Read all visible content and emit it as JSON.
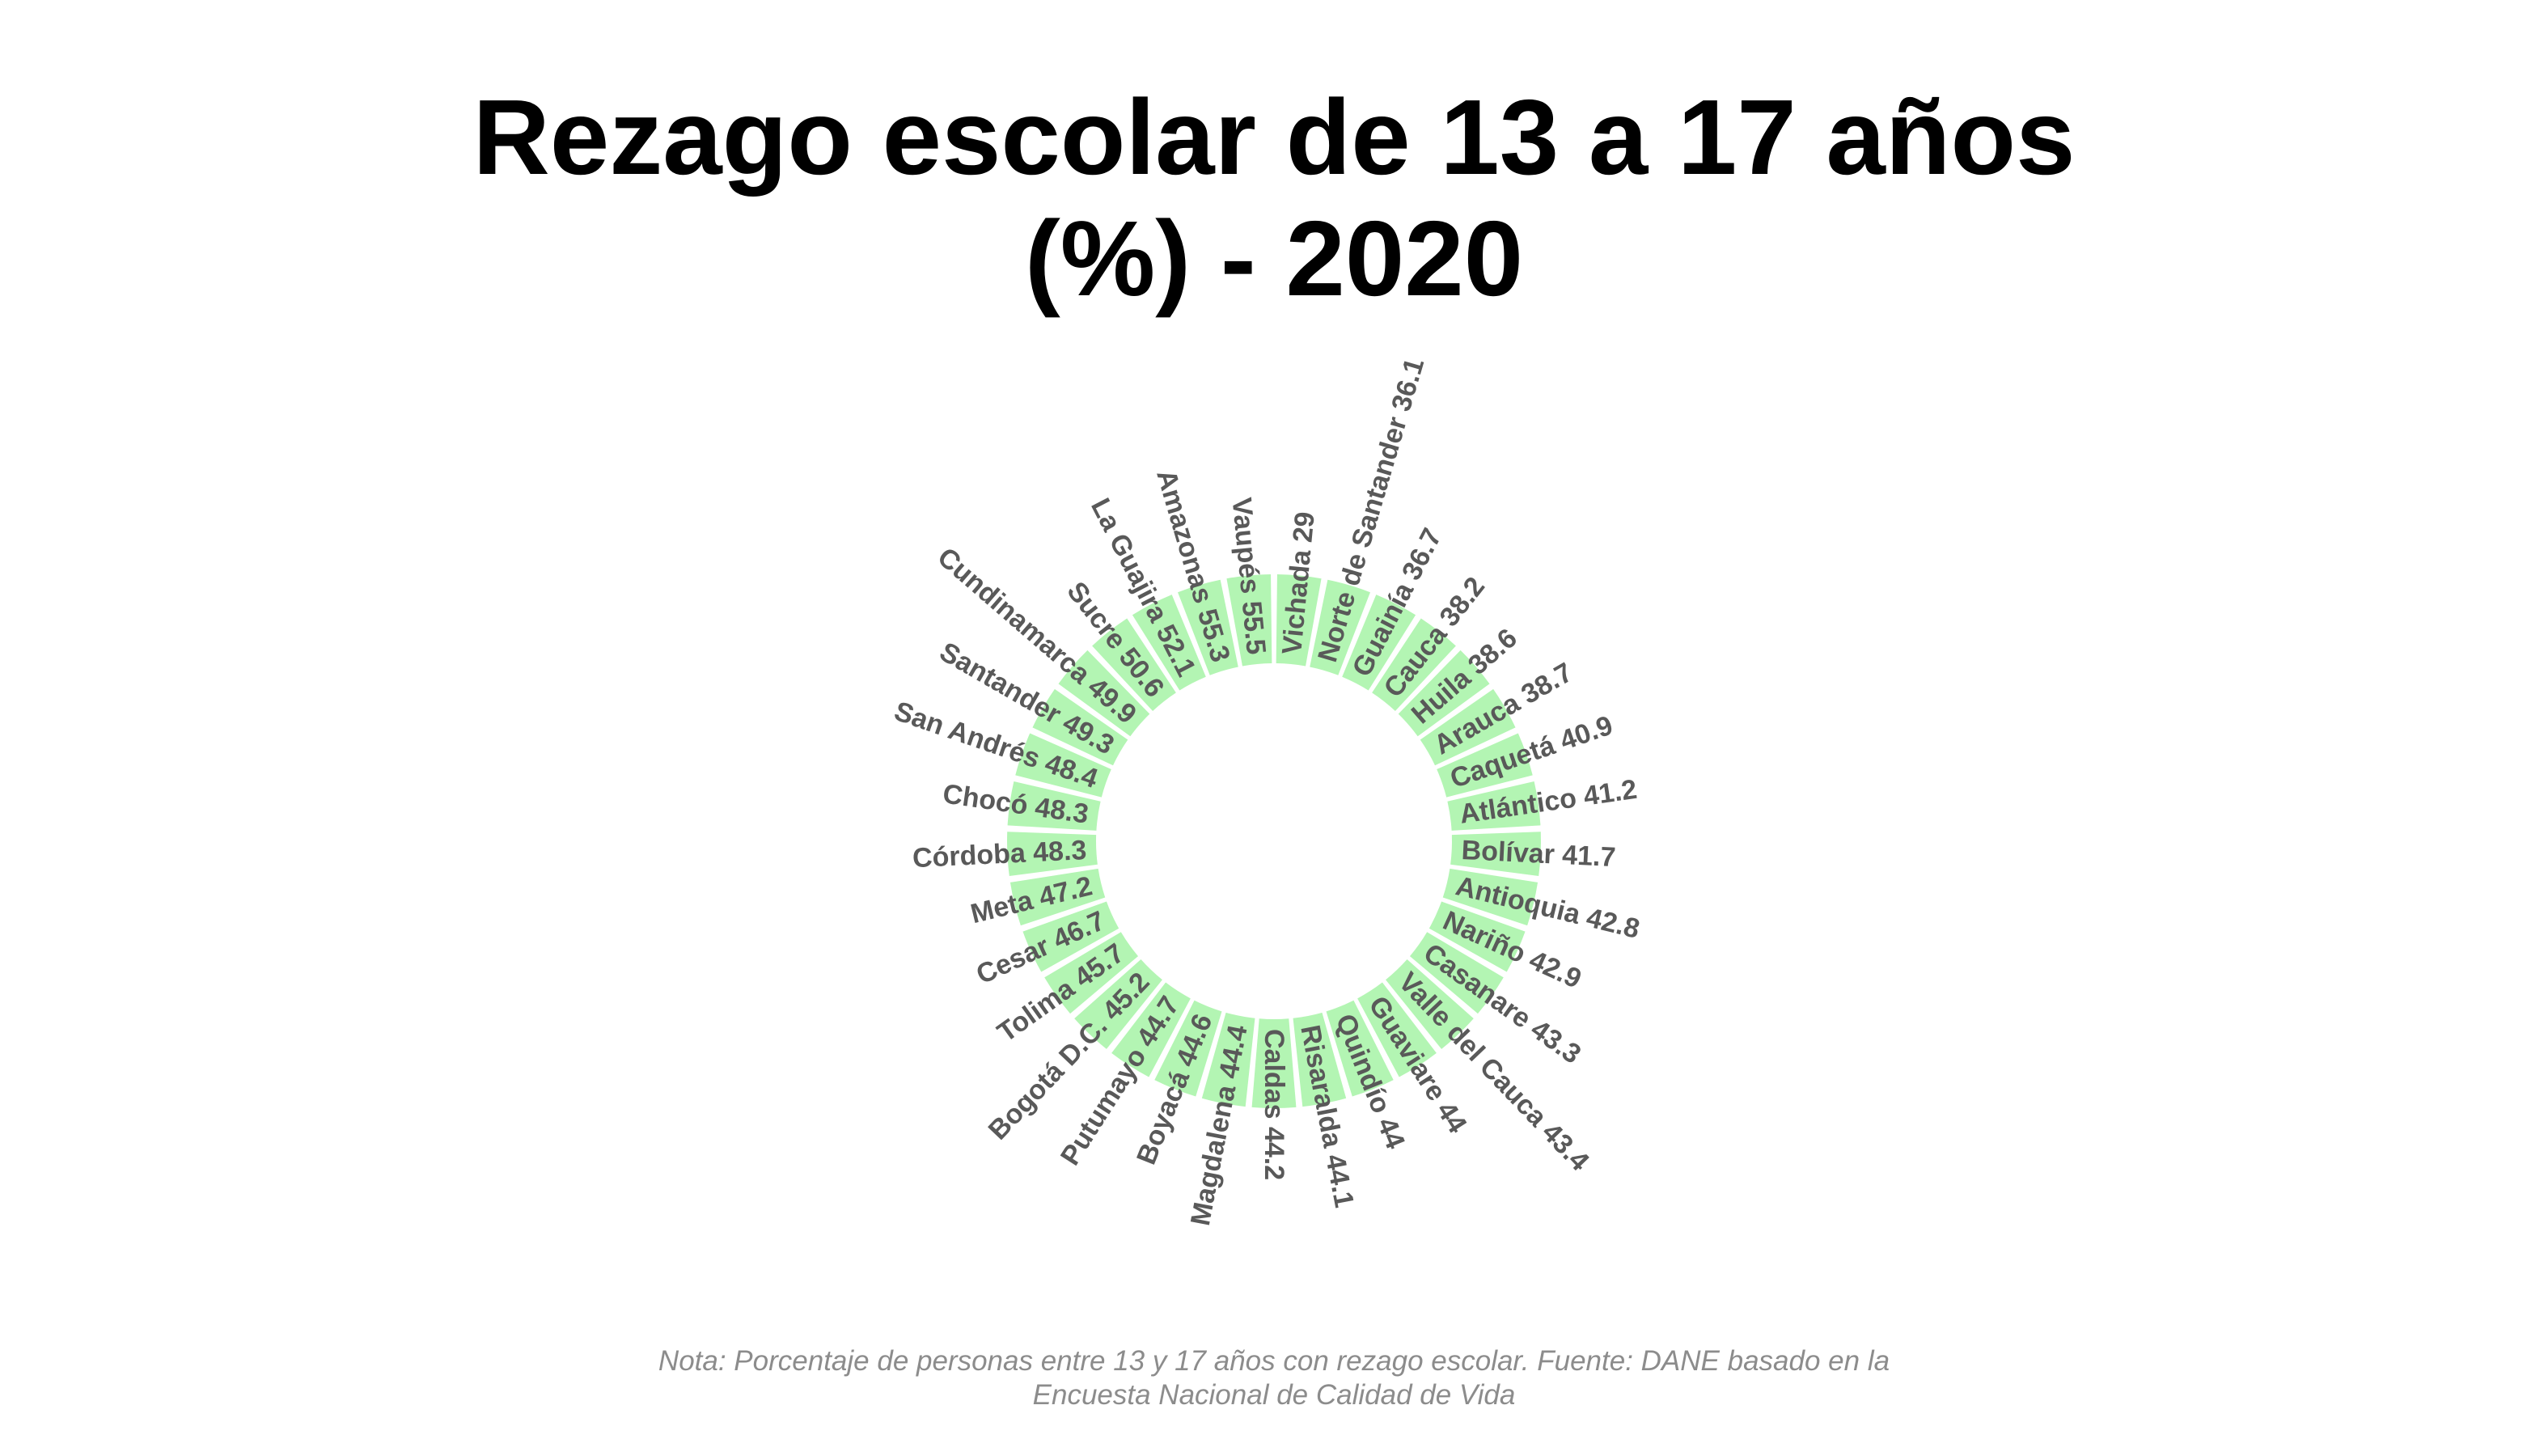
{
  "chart_data": {
    "type": "bar",
    "polar": true,
    "title_lines": [
      "Rezago escolar de 13 a 17 años",
      "(%) - 2020"
    ],
    "categories": [
      "Vichada",
      "Norte de Santander",
      "Guainía",
      "Cauca",
      "Huila",
      "Arauca",
      "Caquetá",
      "Atlántico",
      "Bolívar",
      "Antioquia",
      "Nariño",
      "Casanare",
      "Valle del Cauca",
      "Guaviare",
      "Quindío",
      "Risaralda",
      "Caldas",
      "Magdalena",
      "Boyacá",
      "Putumayo",
      "Bogotá D.C.",
      "Tolima",
      "Cesar",
      "Meta",
      "Córdoba",
      "Chocó",
      "San Andrés",
      "Santander",
      "Cundinamarca",
      "Sucre",
      "La Guajira",
      "Amazonas",
      "Vaupés"
    ],
    "values": [
      29,
      36.1,
      36.7,
      38.2,
      38.6,
      38.7,
      40.9,
      41.2,
      41.7,
      42.8,
      42.9,
      43.3,
      43.4,
      44,
      44,
      44.1,
      44.2,
      44.4,
      44.6,
      44.7,
      45.2,
      45.7,
      46.7,
      47.2,
      48.3,
      48.3,
      48.4,
      49.3,
      49.9,
      50.6,
      52.1,
      55.3,
      55.5
    ],
    "bar_color": "#b3f5b3",
    "label_color": "#595959",
    "grid": false,
    "note_lines": [
      "Nota: Porcentaje de personas entre 13 y 17 años con rezago escolar. Fuente: DANE basado en la",
      "Encuesta Nacional de Calidad de Vida"
    ]
  }
}
